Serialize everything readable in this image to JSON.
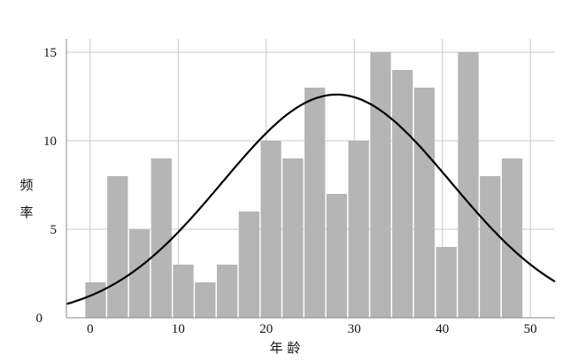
{
  "chart_data": {
    "type": "bar",
    "subtype": "histogram-with-normal-curve",
    "xlabel": "年 龄",
    "ylabel": "频率",
    "xlim": [
      -2.7,
      52.8
    ],
    "ylim": [
      0,
      15.75
    ],
    "xticks": [
      0,
      10,
      20,
      30,
      40,
      50
    ],
    "yticks": [
      0,
      5,
      10,
      15
    ],
    "grid": true,
    "bin_start": -0.6,
    "bin_width": 2.49,
    "values": [
      2,
      8,
      5,
      9,
      3,
      2,
      3,
      6,
      10,
      9,
      13,
      7,
      10,
      15,
      14,
      13,
      4,
      15,
      8,
      9
    ],
    "normal_curve": {
      "mean": 28,
      "sd": 13,
      "n": 165
    },
    "colors": {
      "bar": "#b5b5b5",
      "curve": "#000000",
      "grid": "#c8c8c8"
    }
  }
}
